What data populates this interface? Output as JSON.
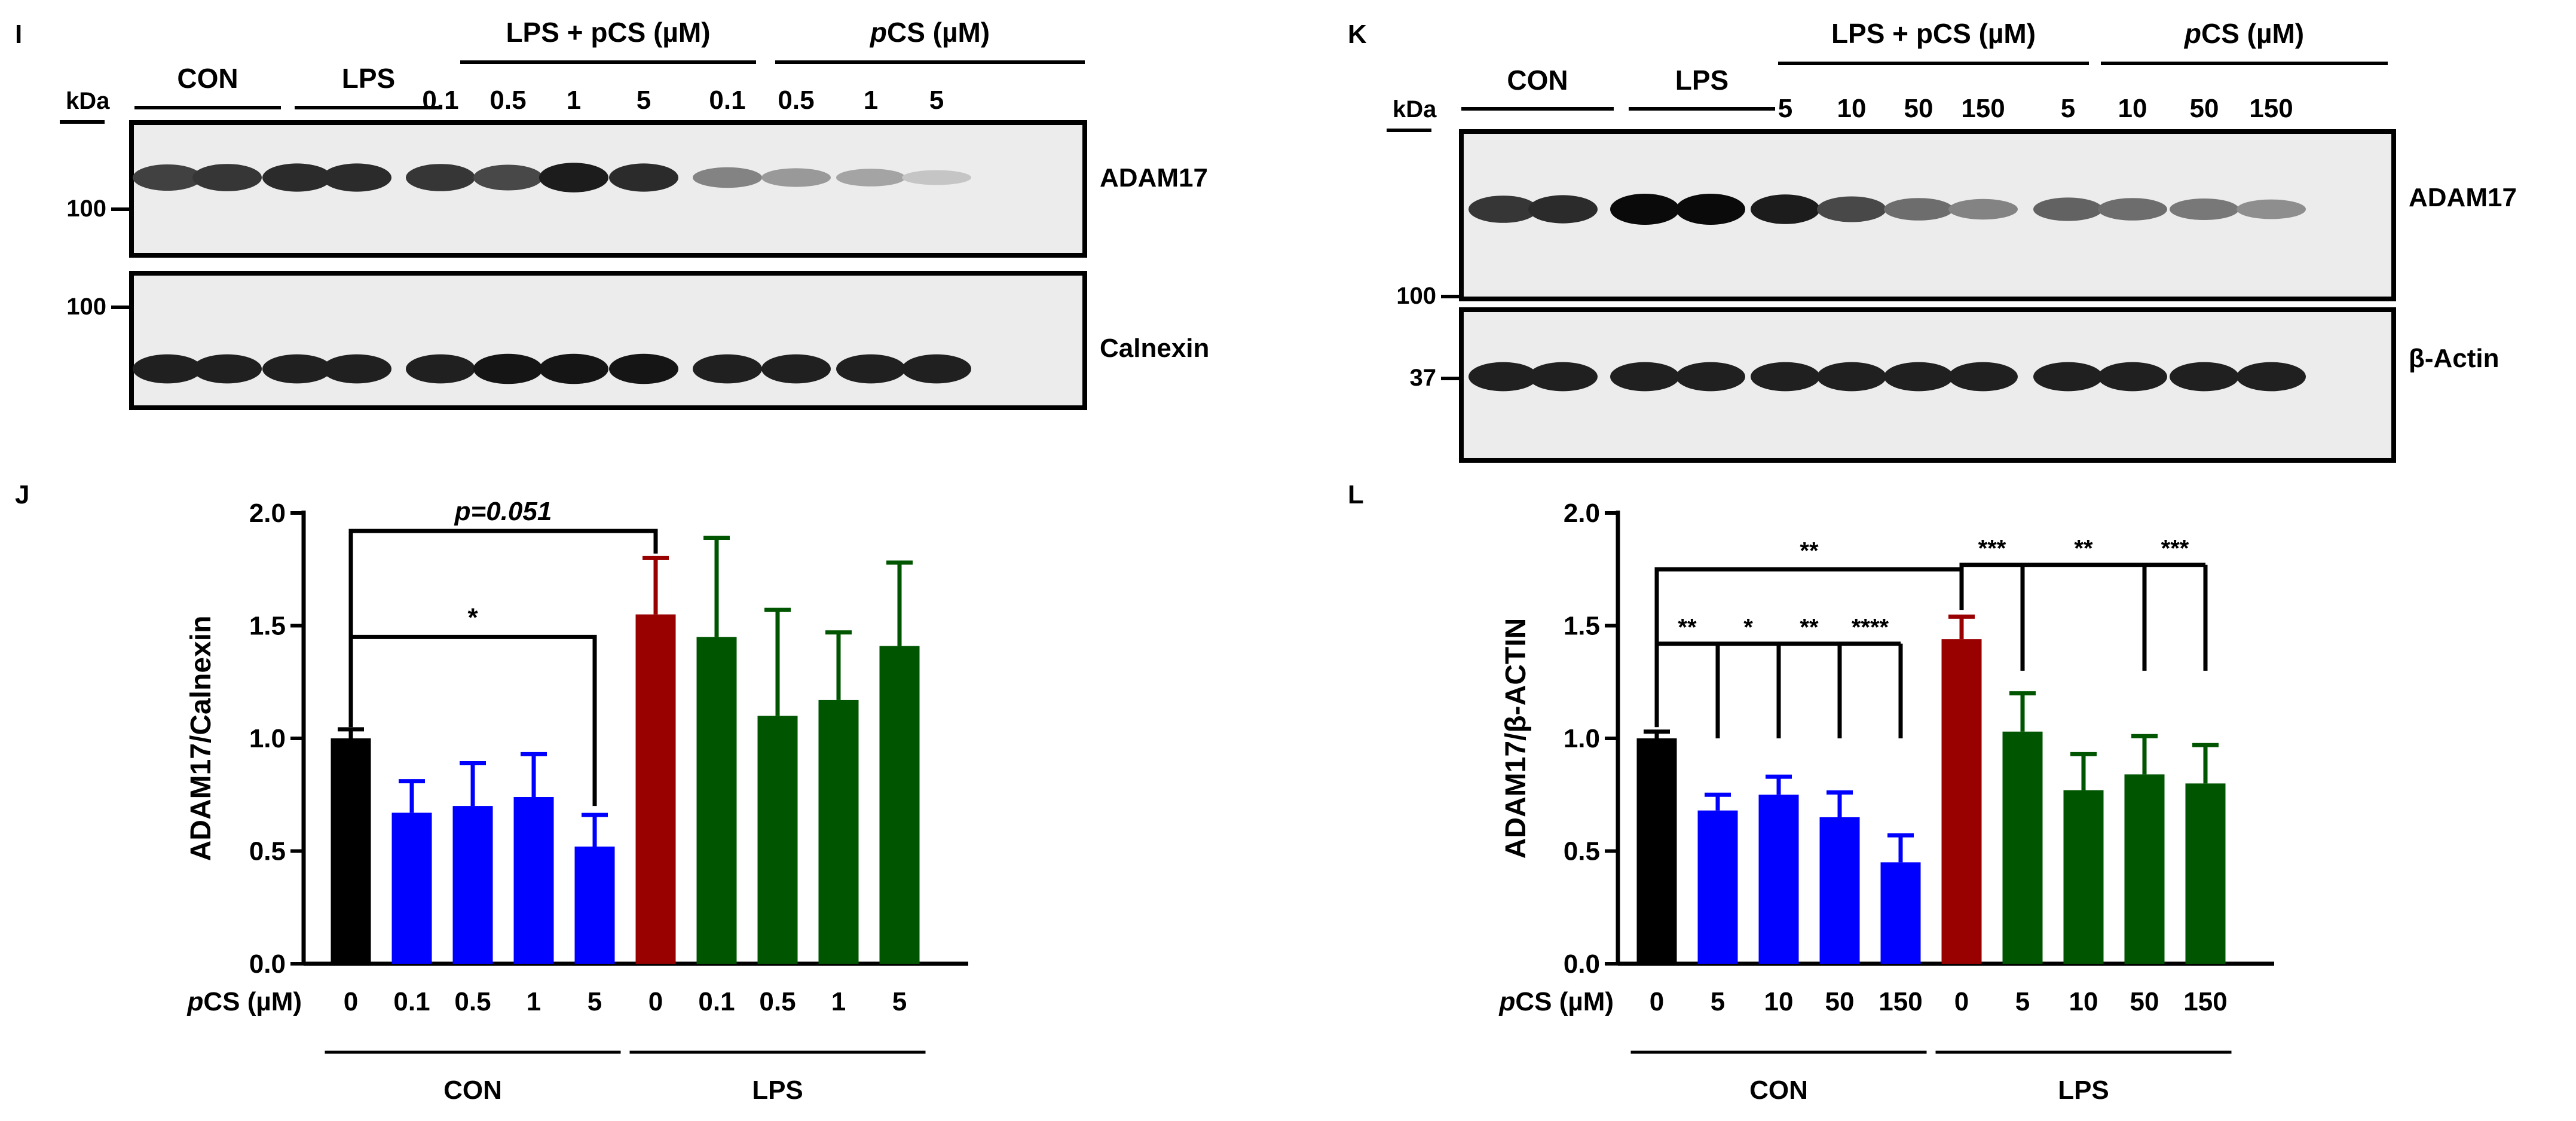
{
  "panels": {
    "I": {
      "letter": "I",
      "kda_label": "kDa",
      "group_labels": [
        "CON",
        "LPS",
        "LPS + pCS (µM)",
        "pCS (µM)"
      ],
      "group_label_italics": [
        "",
        "",
        "p",
        "p"
      ],
      "lane_labels": [
        "0.1",
        "0.5",
        "1",
        "5",
        "0.1",
        "0.5",
        "1",
        "5"
      ],
      "blots": [
        {
          "label": "ADAM17",
          "marker": "100",
          "intensity": [
            0.75,
            0.8,
            0.85,
            0.85,
            0.8,
            0.72,
            0.92,
            0.85,
            0.45,
            0.35,
            0.3,
            0.15
          ]
        },
        {
          "label": "Calnexin",
          "marker": "100",
          "intensity": [
            0.9,
            0.9,
            0.9,
            0.9,
            0.9,
            0.95,
            0.95,
            0.95,
            0.9,
            0.9,
            0.9,
            0.9
          ]
        }
      ]
    },
    "K": {
      "letter": "K",
      "kda_label": "kDa",
      "group_labels": [
        "CON",
        "LPS",
        "LPS + pCS (µM)",
        "pCS (µM)"
      ],
      "group_label_italics": [
        "",
        "",
        "p",
        "p"
      ],
      "lane_labels": [
        "5",
        "10",
        "50",
        "150",
        "5",
        "10",
        "50",
        "150"
      ],
      "blots": [
        {
          "label": "ADAM17",
          "marker": "100",
          "intensity": [
            0.8,
            0.85,
            1.0,
            1.0,
            0.92,
            0.72,
            0.55,
            0.45,
            0.6,
            0.55,
            0.5,
            0.4
          ]
        },
        {
          "label": "β-Actin",
          "marker": "37",
          "intensity": [
            0.9,
            0.9,
            0.9,
            0.9,
            0.9,
            0.9,
            0.9,
            0.9,
            0.9,
            0.9,
            0.9,
            0.9
          ]
        }
      ]
    }
  },
  "chart_data": [
    {
      "type": "bar",
      "panel": "J",
      "ylabel": "ADAM17/Calnexin",
      "xlabel_prefix": "pCS (µM)",
      "xlabel_prefix_italic": "p",
      "ylim": [
        0,
        2.0
      ],
      "yticks": [
        "0.0",
        "0.5",
        "1.0",
        "1.5",
        "2.0"
      ],
      "categories": [
        "0",
        "0.1",
        "0.5",
        "1",
        "5",
        "0",
        "0.1",
        "0.5",
        "1",
        "5"
      ],
      "values": [
        1.0,
        0.67,
        0.7,
        0.74,
        0.52,
        1.55,
        1.45,
        1.1,
        1.17,
        1.41
      ],
      "errors": [
        0.04,
        0.14,
        0.19,
        0.19,
        0.14,
        0.25,
        0.44,
        0.47,
        0.3,
        0.37
      ],
      "colors": [
        "#000000",
        "#0000ff",
        "#0000ff",
        "#0000ff",
        "#0000ff",
        "#990000",
        "#005500",
        "#005500",
        "#005500",
        "#005500"
      ],
      "groups": [
        {
          "label": "CON",
          "from": 0,
          "to": 4
        },
        {
          "label": "LPS",
          "from": 5,
          "to": 9
        }
      ],
      "annotations": [
        {
          "text": "p=0.051",
          "italic": true,
          "from": 0,
          "to": 5,
          "y": 1.92,
          "drop_from": 1.05,
          "drop_to": 1.82
        },
        {
          "text": "*",
          "italic": false,
          "from": 0,
          "to": 4,
          "y": 1.45,
          "drop_from": 1.05,
          "drop_to": 0.7
        }
      ]
    },
    {
      "type": "bar",
      "panel": "L",
      "ylabel": "ADAM17/β-ACTIN",
      "xlabel_prefix": "pCS (µM)",
      "xlabel_prefix_italic": "p",
      "ylim": [
        0,
        2.0
      ],
      "yticks": [
        "0.0",
        "0.5",
        "1.0",
        "1.5",
        "2.0"
      ],
      "categories": [
        "0",
        "5",
        "10",
        "50",
        "150",
        "0",
        "5",
        "10",
        "50",
        "150"
      ],
      "values": [
        1.0,
        0.68,
        0.75,
        0.65,
        0.45,
        1.44,
        1.03,
        0.77,
        0.84,
        0.8
      ],
      "errors": [
        0.03,
        0.07,
        0.08,
        0.11,
        0.12,
        0.1,
        0.17,
        0.16,
        0.17,
        0.17
      ],
      "colors": [
        "#000000",
        "#0000ff",
        "#0000ff",
        "#0000ff",
        "#0000ff",
        "#990000",
        "#005500",
        "#005500",
        "#005500",
        "#005500"
      ],
      "groups": [
        {
          "label": "CON",
          "from": 0,
          "to": 4
        },
        {
          "label": "LPS",
          "from": 5,
          "to": 9
        }
      ],
      "brackets": [
        {
          "type": "simple",
          "text": "**",
          "from": 0,
          "to": 5,
          "y": 1.75,
          "drop_from": 1.05,
          "drop_to": 1.57
        },
        {
          "type": "comb",
          "base": 0,
          "targets": [
            1,
            2,
            3,
            4
          ],
          "labels": [
            "**",
            "*",
            "**",
            "****"
          ],
          "y": 1.42,
          "base_drop": 1.05,
          "target_drop": [
            1.0,
            1.0,
            1.0,
            1.0
          ]
        },
        {
          "type": "comb",
          "base": 5,
          "targets": [
            6,
            8,
            9
          ],
          "labels": [
            "***",
            "**",
            "***"
          ],
          "y": 1.77,
          "base_drop": 1.58,
          "target_drop": [
            1.3,
            1.3,
            1.3
          ]
        }
      ]
    }
  ]
}
